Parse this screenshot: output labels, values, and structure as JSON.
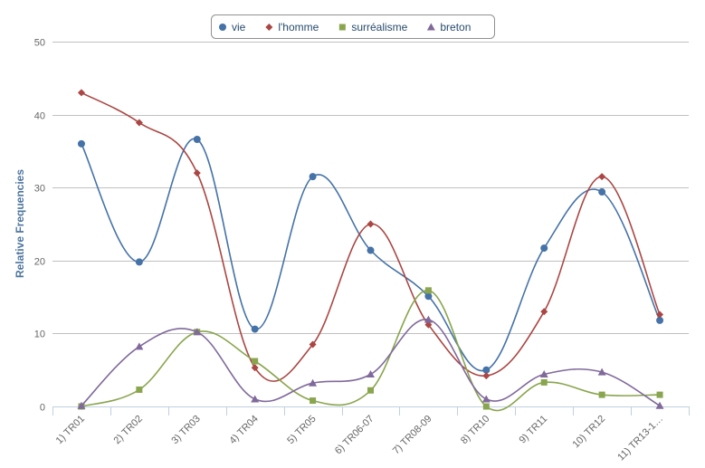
{
  "chart_data": {
    "type": "line",
    "title": "",
    "xlabel": "",
    "ylabel": "Relative Frequencies",
    "ylim": [
      0,
      50
    ],
    "yticks": [
      0,
      10,
      20,
      30,
      40,
      50
    ],
    "grid": true,
    "legend_position": "top-center",
    "categories": [
      "1) TR01",
      "2) TR02",
      "3) TR03",
      "4) TR04",
      "5) TR05",
      "6) TR06-07",
      "7) TR08-09",
      "8) TR10",
      "9) TR11",
      "10) TR12",
      "11) TR13-1…"
    ],
    "series": [
      {
        "name": "vie",
        "color": "#4572a7",
        "marker": "circle",
        "values": [
          36.0,
          19.8,
          36.6,
          10.6,
          31.5,
          21.4,
          15.1,
          5.0,
          21.7,
          29.4,
          11.8
        ]
      },
      {
        "name": "l'homme",
        "color": "#aa4643",
        "marker": "diamond",
        "values": [
          43.0,
          38.9,
          32.0,
          5.3,
          8.5,
          25.0,
          11.2,
          4.2,
          13.0,
          31.5,
          12.6
        ]
      },
      {
        "name": "surréalisme",
        "color": "#89a54e",
        "marker": "square",
        "values": [
          0.0,
          2.3,
          10.2,
          6.2,
          0.8,
          2.2,
          15.9,
          0.0,
          3.3,
          1.6,
          1.6
        ]
      },
      {
        "name": "breton",
        "color": "#80699b",
        "marker": "triangle",
        "values": [
          0.1,
          8.2,
          10.2,
          1.0,
          3.2,
          4.4,
          11.9,
          1.0,
          4.4,
          4.7,
          0.1
        ]
      }
    ]
  }
}
